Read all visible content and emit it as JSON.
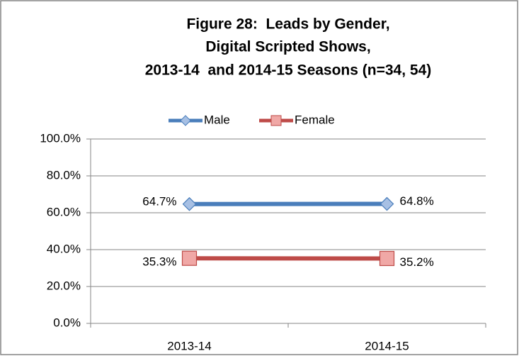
{
  "chart_data": {
    "type": "line",
    "title": [
      "Figure 28:  Leads by Gender,",
      "Digital Scripted Shows,",
      "2013-14  and 2014-15 Seasons (n=34, 54)"
    ],
    "categories": [
      "2013-14",
      "2014-15"
    ],
    "series": [
      {
        "name": "Male",
        "color": "#4a7ebb",
        "marker": "diamond",
        "values": [
          64.7,
          64.8
        ],
        "value_labels": [
          "64.7%",
          "64.8%"
        ]
      },
      {
        "name": "Female",
        "color": "#be4b48",
        "marker": "square",
        "values": [
          35.3,
          35.2
        ],
        "value_labels": [
          "35.3%",
          "35.2%"
        ]
      }
    ],
    "ylim": [
      0,
      100
    ],
    "yticks": [
      {
        "value": 0,
        "label": "0.0%"
      },
      {
        "value": 20,
        "label": "20.0%"
      },
      {
        "value": 40,
        "label": "40.0%"
      },
      {
        "value": 60,
        "label": "60.0%"
      },
      {
        "value": 80,
        "label": "80.0%"
      },
      {
        "value": 100,
        "label": "100.0%"
      }
    ],
    "grid": true,
    "legend": "top"
  }
}
